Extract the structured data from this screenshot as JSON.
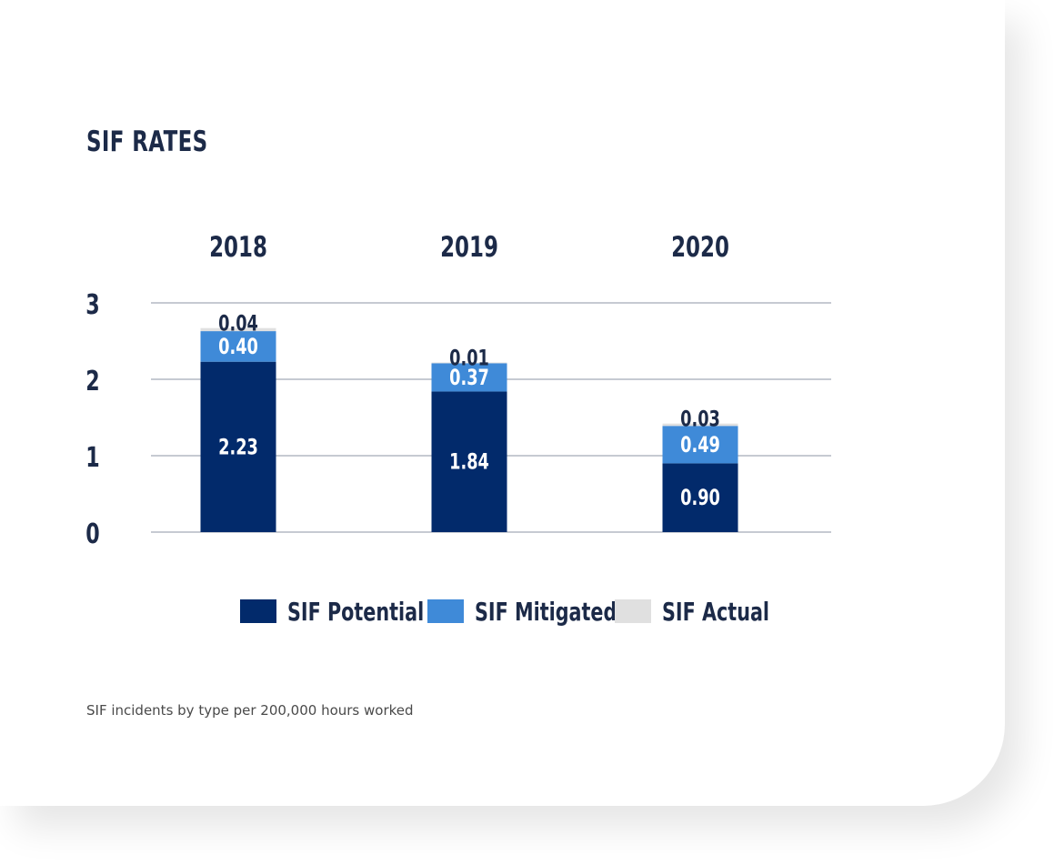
{
  "page": {
    "title": "SIF RATES",
    "caption": "SIF incidents by type per 200,000 hours worked"
  },
  "colors": {
    "potential": "#022a6b",
    "mitigated": "#3f8ad8",
    "actual": "#e0e0e0",
    "grid": "#8c94a4",
    "text_dark": "#1c2a48",
    "label_light": "#ffffff"
  },
  "chart_data": {
    "type": "bar",
    "stacked": true,
    "title": "SIF RATES",
    "categories": [
      "2018",
      "2019",
      "2020"
    ],
    "series": [
      {
        "name": "SIF Potential",
        "values": [
          2.23,
          1.84,
          0.9
        ],
        "labels": [
          "2.23",
          "1.84",
          "0.90"
        ]
      },
      {
        "name": "SIF Mitigated",
        "values": [
          0.4,
          0.37,
          0.49
        ],
        "labels": [
          "0.40",
          "0.37",
          "0.49"
        ]
      },
      {
        "name": "SIF Actual",
        "values": [
          0.04,
          0.01,
          0.03
        ],
        "labels": [
          "0.04",
          "0.01",
          "0.03"
        ]
      }
    ],
    "y_ticks": [
      {
        "value": 0,
        "label": "0"
      },
      {
        "value": 1,
        "label": "1"
      },
      {
        "value": 2,
        "label": "2"
      },
      {
        "value": 3,
        "label": "3"
      }
    ],
    "ylim": [
      0,
      3
    ],
    "grid": true,
    "legend_position": "bottom",
    "category_label_position": "top"
  }
}
